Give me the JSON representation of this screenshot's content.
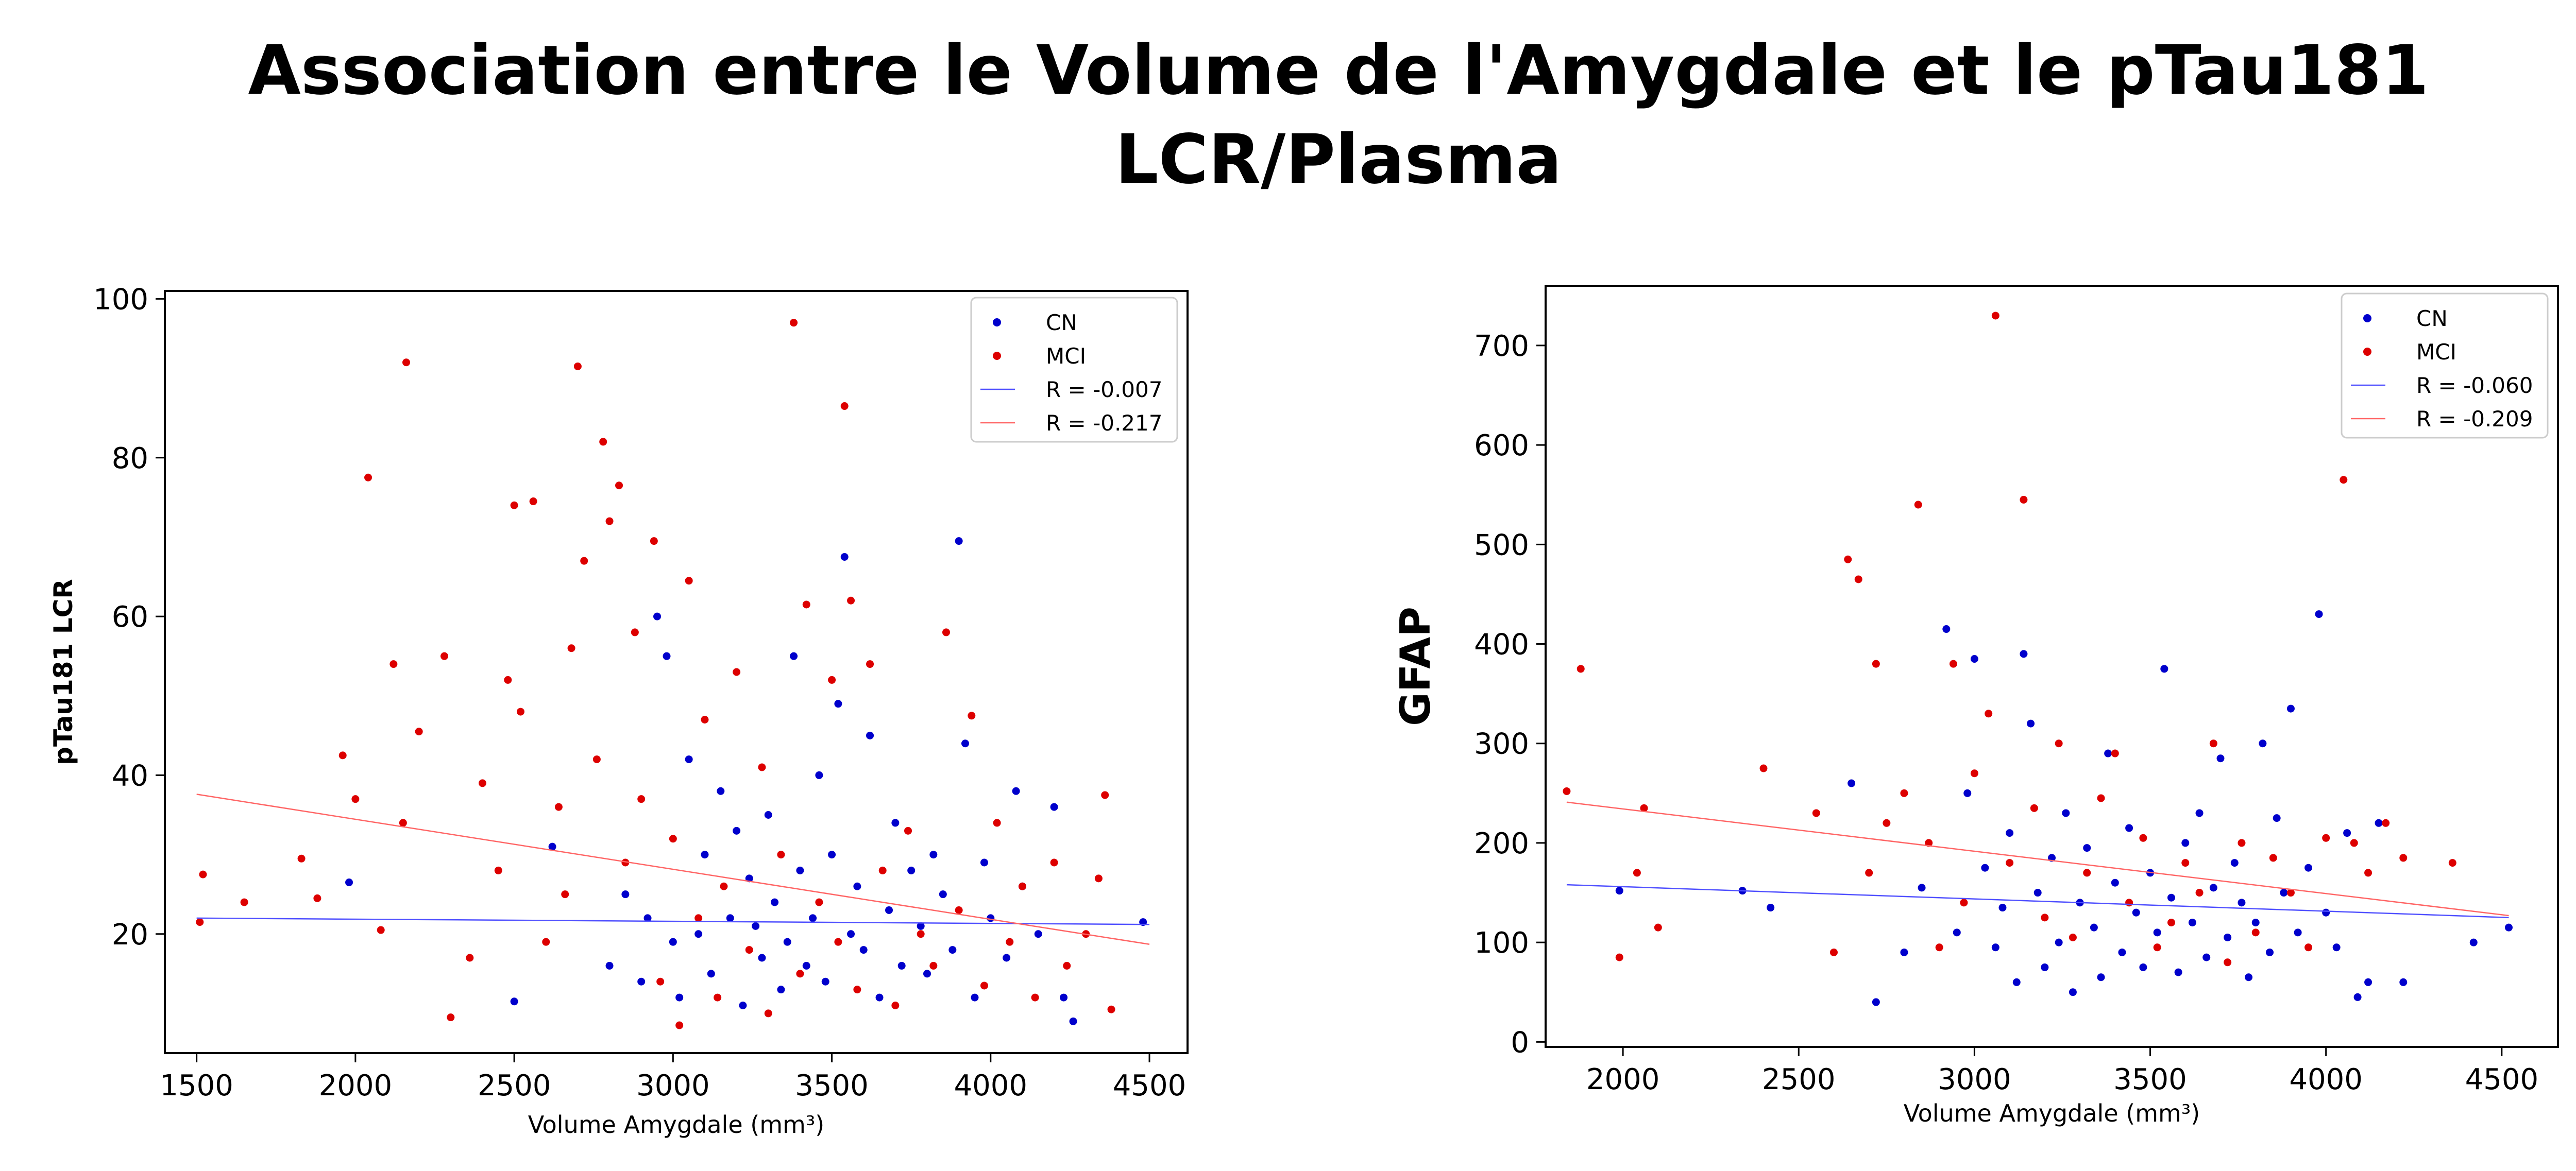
{
  "title_line1": "Association entre le Volume de l'Amygdale et le pTau181",
  "title_line2": "LCR/Plasma",
  "colors": {
    "CN": "#0000cc",
    "MCI": "#dd0000"
  },
  "chart_data": [
    {
      "type": "scatter",
      "xlabel": "Volume Amygdale (mm³)",
      "ylabel": "pTau181 LCR",
      "xlim": [
        1400,
        4620
      ],
      "ylim": [
        5,
        101
      ],
      "xticks": [
        1500,
        2000,
        2500,
        3000,
        3500,
        4000,
        4500
      ],
      "yticks": [
        20,
        40,
        60,
        80,
        100
      ],
      "grid": false,
      "legend": "top-right",
      "legend_entries": [
        "CN",
        "MCI",
        "R = -0.007",
        "R = -0.217"
      ],
      "series": [
        {
          "name": "CN",
          "points": [
            [
              1980,
              26.5
            ],
            [
              2500,
              11.5
            ],
            [
              2620,
              31
            ],
            [
              2800,
              16
            ],
            [
              2850,
              25
            ],
            [
              2900,
              14
            ],
            [
              2920,
              22
            ],
            [
              2950,
              60
            ],
            [
              2980,
              55
            ],
            [
              3000,
              19
            ],
            [
              3020,
              12
            ],
            [
              3050,
              42
            ],
            [
              3080,
              20
            ],
            [
              3100,
              30
            ],
            [
              3120,
              15
            ],
            [
              3150,
              38
            ],
            [
              3180,
              22
            ],
            [
              3200,
              33
            ],
            [
              3220,
              11
            ],
            [
              3240,
              27
            ],
            [
              3260,
              21
            ],
            [
              3280,
              17
            ],
            [
              3300,
              35
            ],
            [
              3320,
              24
            ],
            [
              3340,
              13
            ],
            [
              3360,
              19
            ],
            [
              3380,
              55
            ],
            [
              3400,
              28
            ],
            [
              3420,
              16
            ],
            [
              3440,
              22
            ],
            [
              3460,
              40
            ],
            [
              3480,
              14
            ],
            [
              3500,
              30
            ],
            [
              3520,
              49
            ],
            [
              3540,
              67.5
            ],
            [
              3560,
              20
            ],
            [
              3580,
              26
            ],
            [
              3600,
              18
            ],
            [
              3620,
              45
            ],
            [
              3650,
              12
            ],
            [
              3680,
              23
            ],
            [
              3700,
              34
            ],
            [
              3720,
              16
            ],
            [
              3750,
              28
            ],
            [
              3780,
              21
            ],
            [
              3800,
              15
            ],
            [
              3820,
              30
            ],
            [
              3850,
              25
            ],
            [
              3880,
              18
            ],
            [
              3900,
              69.5
            ],
            [
              3920,
              44
            ],
            [
              3950,
              12
            ],
            [
              3980,
              29
            ],
            [
              4000,
              22
            ],
            [
              4050,
              17
            ],
            [
              4080,
              38
            ],
            [
              4100,
              26
            ],
            [
              4150,
              20
            ],
            [
              4200,
              36
            ],
            [
              4230,
              12
            ],
            [
              4260,
              9
            ],
            [
              4480,
              21.5
            ]
          ]
        },
        {
          "name": "MCI",
          "points": [
            [
              1510,
              21.5
            ],
            [
              1520,
              27.5
            ],
            [
              1650,
              24
            ],
            [
              1830,
              29.5
            ],
            [
              1880,
              24.5
            ],
            [
              1960,
              42.5
            ],
            [
              2000,
              37
            ],
            [
              2040,
              77.5
            ],
            [
              2080,
              20.5
            ],
            [
              2120,
              54
            ],
            [
              2150,
              34
            ],
            [
              2160,
              92
            ],
            [
              2200,
              45.5
            ],
            [
              2280,
              55
            ],
            [
              2300,
              9.5
            ],
            [
              2360,
              17
            ],
            [
              2400,
              39
            ],
            [
              2450,
              28
            ],
            [
              2480,
              52
            ],
            [
              2500,
              74
            ],
            [
              2520,
              48
            ],
            [
              2560,
              74.5
            ],
            [
              2600,
              19
            ],
            [
              2640,
              36
            ],
            [
              2660,
              25
            ],
            [
              2680,
              56
            ],
            [
              2700,
              91.5
            ],
            [
              2720,
              67
            ],
            [
              2760,
              42
            ],
            [
              2780,
              82
            ],
            [
              2800,
              72
            ],
            [
              2830,
              76.5
            ],
            [
              2850,
              29
            ],
            [
              2880,
              58
            ],
            [
              2900,
              37
            ],
            [
              2940,
              69.5
            ],
            [
              2960,
              14
            ],
            [
              3000,
              32
            ],
            [
              3020,
              8.5
            ],
            [
              3050,
              64.5
            ],
            [
              3080,
              22
            ],
            [
              3100,
              47
            ],
            [
              3140,
              12
            ],
            [
              3160,
              26
            ],
            [
              3200,
              53
            ],
            [
              3240,
              18
            ],
            [
              3280,
              41
            ],
            [
              3300,
              10
            ],
            [
              3340,
              30
            ],
            [
              3380,
              97
            ],
            [
              3400,
              15
            ],
            [
              3420,
              61.5
            ],
            [
              3460,
              24
            ],
            [
              3500,
              52
            ],
            [
              3520,
              19
            ],
            [
              3540,
              86.5
            ],
            [
              3560,
              62
            ],
            [
              3580,
              13
            ],
            [
              3620,
              54
            ],
            [
              3660,
              28
            ],
            [
              3700,
              11
            ],
            [
              3740,
              33
            ],
            [
              3780,
              20
            ],
            [
              3820,
              16
            ],
            [
              3860,
              58
            ],
            [
              3900,
              23
            ],
            [
              3940,
              47.5
            ],
            [
              3980,
              13.5
            ],
            [
              4020,
              34
            ],
            [
              4060,
              19
            ],
            [
              4100,
              26
            ],
            [
              4140,
              12
            ],
            [
              4200,
              29
            ],
            [
              4240,
              16
            ],
            [
              4300,
              20
            ],
            [
              4340,
              27
            ],
            [
              4360,
              37.5
            ],
            [
              4380,
              10.5
            ]
          ]
        }
      ],
      "fits": [
        {
          "label": "R = -0.007",
          "color": "#5050ff",
          "x": [
            1500,
            4500
          ],
          "y": [
            22.0,
            21.2
          ]
        },
        {
          "label": "R = -0.217",
          "color": "#ff6666",
          "x": [
            1500,
            4500
          ],
          "y": [
            37.6,
            18.7
          ]
        }
      ]
    },
    {
      "type": "scatter",
      "xlabel": "Volume Amygdale (mm³)",
      "ylabel": "GFAP",
      "xlim": [
        1780,
        4660
      ],
      "ylim": [
        -5,
        760
      ],
      "xticks": [
        2000,
        2500,
        3000,
        3500,
        4000,
        4500
      ],
      "yticks": [
        0,
        100,
        200,
        300,
        400,
        500,
        600,
        700
      ],
      "grid": false,
      "legend": "top-right",
      "legend_entries": [
        "CN",
        "MCI",
        "R = -0.060",
        "R = -0.209"
      ],
      "series": [
        {
          "name": "CN",
          "points": [
            [
              1990,
              152
            ],
            [
              2340,
              152
            ],
            [
              2420,
              135
            ],
            [
              2650,
              260
            ],
            [
              2720,
              40
            ],
            [
              2800,
              90
            ],
            [
              2850,
              155
            ],
            [
              2920,
              415
            ],
            [
              2950,
              110
            ],
            [
              2980,
              250
            ],
            [
              3000,
              385
            ],
            [
              3030,
              175
            ],
            [
              3060,
              95
            ],
            [
              3080,
              135
            ],
            [
              3100,
              210
            ],
            [
              3120,
              60
            ],
            [
              3140,
              390
            ],
            [
              3160,
              320
            ],
            [
              3180,
              150
            ],
            [
              3200,
              75
            ],
            [
              3220,
              185
            ],
            [
              3240,
              100
            ],
            [
              3260,
              230
            ],
            [
              3280,
              50
            ],
            [
              3300,
              140
            ],
            [
              3320,
              195
            ],
            [
              3340,
              115
            ],
            [
              3360,
              65
            ],
            [
              3380,
              290
            ],
            [
              3400,
              160
            ],
            [
              3420,
              90
            ],
            [
              3440,
              215
            ],
            [
              3460,
              130
            ],
            [
              3480,
              75
            ],
            [
              3500,
              170
            ],
            [
              3520,
              110
            ],
            [
              3540,
              375
            ],
            [
              3560,
              145
            ],
            [
              3580,
              70
            ],
            [
              3600,
              200
            ],
            [
              3620,
              120
            ],
            [
              3640,
              230
            ],
            [
              3660,
              85
            ],
            [
              3680,
              155
            ],
            [
              3700,
              285
            ],
            [
              3720,
              105
            ],
            [
              3740,
              180
            ],
            [
              3760,
              140
            ],
            [
              3780,
              65
            ],
            [
              3800,
              120
            ],
            [
              3820,
              300
            ],
            [
              3840,
              90
            ],
            [
              3860,
              225
            ],
            [
              3880,
              150
            ],
            [
              3900,
              335
            ],
            [
              3920,
              110
            ],
            [
              3950,
              175
            ],
            [
              3980,
              430
            ],
            [
              4000,
              130
            ],
            [
              4030,
              95
            ],
            [
              4060,
              210
            ],
            [
              4090,
              45
            ],
            [
              4120,
              60
            ],
            [
              4150,
              220
            ],
            [
              4220,
              60
            ],
            [
              4420,
              100
            ],
            [
              4520,
              115
            ]
          ]
        },
        {
          "name": "MCI",
          "points": [
            [
              1840,
              252
            ],
            [
              1880,
              375
            ],
            [
              1990,
              85
            ],
            [
              2040,
              170
            ],
            [
              2060,
              235
            ],
            [
              2100,
              115
            ],
            [
              2400,
              275
            ],
            [
              2550,
              230
            ],
            [
              2600,
              90
            ],
            [
              2640,
              485
            ],
            [
              2670,
              465
            ],
            [
              2700,
              170
            ],
            [
              2720,
              380
            ],
            [
              2750,
              220
            ],
            [
              2800,
              250
            ],
            [
              2840,
              540
            ],
            [
              2870,
              200
            ],
            [
              2900,
              95
            ],
            [
              2940,
              380
            ],
            [
              2970,
              140
            ],
            [
              3000,
              270
            ],
            [
              3040,
              330
            ],
            [
              3060,
              730
            ],
            [
              3100,
              180
            ],
            [
              3140,
              545
            ],
            [
              3170,
              235
            ],
            [
              3200,
              125
            ],
            [
              3240,
              300
            ],
            [
              3280,
              105
            ],
            [
              3320,
              170
            ],
            [
              3360,
              245
            ],
            [
              3400,
              290
            ],
            [
              3440,
              140
            ],
            [
              3480,
              205
            ],
            [
              3520,
              95
            ],
            [
              3560,
              120
            ],
            [
              3600,
              180
            ],
            [
              3640,
              150
            ],
            [
              3680,
              300
            ],
            [
              3720,
              80
            ],
            [
              3760,
              200
            ],
            [
              3800,
              110
            ],
            [
              3850,
              185
            ],
            [
              3900,
              150
            ],
            [
              3950,
              95
            ],
            [
              4000,
              205
            ],
            [
              4050,
              565
            ],
            [
              4080,
              200
            ],
            [
              4120,
              170
            ],
            [
              4170,
              220
            ],
            [
              4220,
              185
            ],
            [
              4360,
              180
            ]
          ]
        }
      ],
      "fits": [
        {
          "label": "R = -0.060",
          "color": "#5050ff",
          "x": [
            1840,
            4520
          ],
          "y": [
            158,
            125
          ]
        },
        {
          "label": "R = -0.209",
          "color": "#ff6666",
          "x": [
            1840,
            4520
          ],
          "y": [
            241,
            127
          ]
        }
      ]
    }
  ]
}
